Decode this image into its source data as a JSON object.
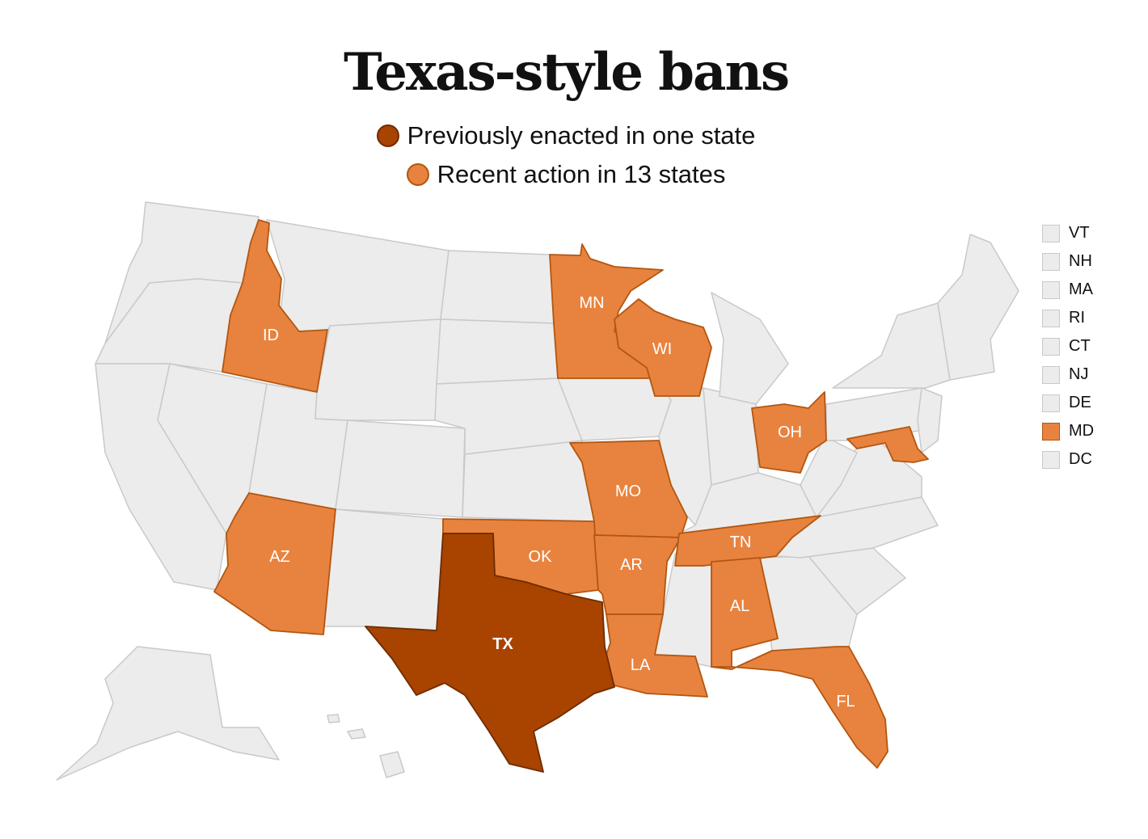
{
  "title": "Texas-style bans",
  "legend": [
    {
      "label": "Previously enacted in one state",
      "color": "#a84300",
      "stroke": "#6e2c00"
    },
    {
      "label": "Recent action in 13 states",
      "color": "#e8833f",
      "stroke": "#b3560f"
    }
  ],
  "colors": {
    "none": "#ececec",
    "none_stroke": "#c9c9c9",
    "action_stroke": "#b3560f",
    "enacted_stroke": "#6e2c00"
  },
  "states": [
    {
      "abbr": "ID",
      "status": "action"
    },
    {
      "abbr": "MN",
      "status": "action"
    },
    {
      "abbr": "WI",
      "status": "action"
    },
    {
      "abbr": "OH",
      "status": "action"
    },
    {
      "abbr": "MO",
      "status": "action"
    },
    {
      "abbr": "AZ",
      "status": "action"
    },
    {
      "abbr": "OK",
      "status": "action"
    },
    {
      "abbr": "AR",
      "status": "action"
    },
    {
      "abbr": "TN",
      "status": "action"
    },
    {
      "abbr": "AL",
      "status": "action"
    },
    {
      "abbr": "LA",
      "status": "action"
    },
    {
      "abbr": "FL",
      "status": "action"
    },
    {
      "abbr": "TX",
      "status": "enacted"
    }
  ],
  "small_states": [
    {
      "abbr": "VT",
      "status": "none"
    },
    {
      "abbr": "NH",
      "status": "none"
    },
    {
      "abbr": "MA",
      "status": "none"
    },
    {
      "abbr": "RI",
      "status": "none"
    },
    {
      "abbr": "CT",
      "status": "none"
    },
    {
      "abbr": "NJ",
      "status": "none"
    },
    {
      "abbr": "DE",
      "status": "none"
    },
    {
      "abbr": "MD",
      "status": "action"
    },
    {
      "abbr": "DC",
      "status": "none"
    }
  ]
}
